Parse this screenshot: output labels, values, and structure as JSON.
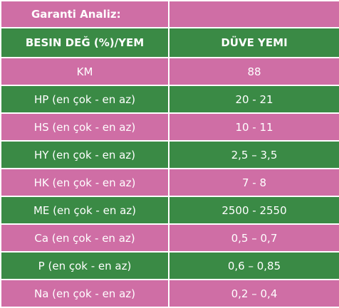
{
  "title": "Garanti Analiz:",
  "colors": {
    "pink": "#cf6ea5",
    "green": "#3a8a45",
    "text": "#ffffff"
  },
  "header": {
    "col1": "BESIN DEĞ (%)/YEM",
    "col2": "DÜVE YEMI"
  },
  "rows": [
    {
      "label": "KM",
      "value": "88"
    },
    {
      "label": "HP (en çok - en az)",
      "value": "20 - 21"
    },
    {
      "label": "HS (en çok - en az)",
      "value": "10 - 11"
    },
    {
      "label": "HY (en çok - en az)",
      "value": "2,5 – 3,5"
    },
    {
      "label": "HK (en çok - en az)",
      "value": "7 - 8"
    },
    {
      "label": "ME (en çok - en az)",
      "value": "2500 - 2550"
    },
    {
      "label": "Ca (en çok - en az)",
      "value": "0,5 – 0,7"
    },
    {
      "label": "P (en çok - en az)",
      "value": "0,6 – 0,85"
    },
    {
      "label": "Na (en çok - en az)",
      "value": "0,2 – 0,4"
    }
  ]
}
